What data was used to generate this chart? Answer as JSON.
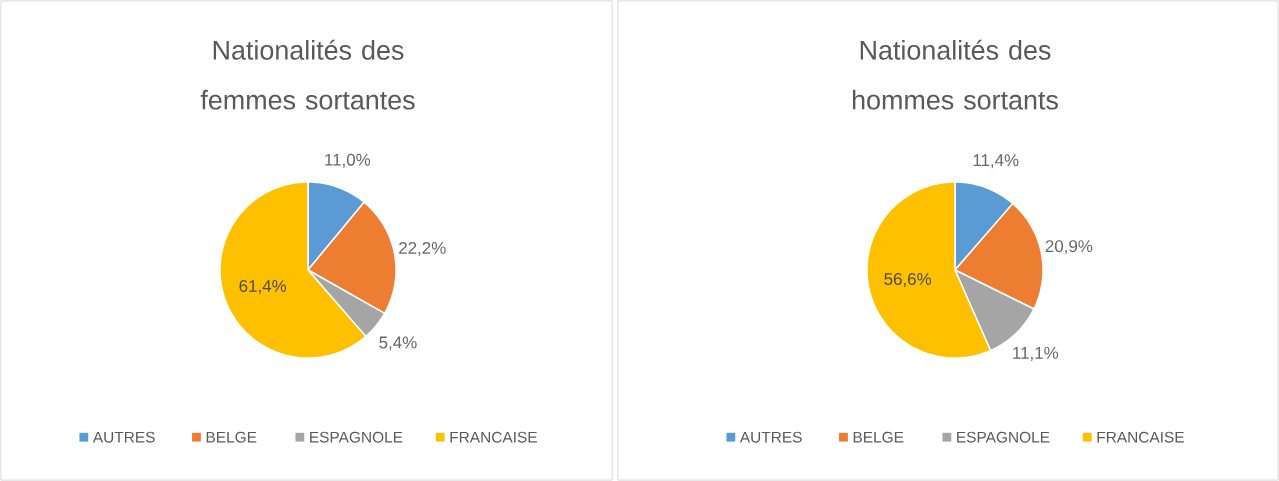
{
  "chart_data": [
    {
      "type": "pie",
      "title": "Nationalités des femmes sortantes",
      "categories": [
        "AUTRES",
        "BELGE",
        "ESPAGNOLE",
        "FRANCAISE"
      ],
      "values": [
        11.0,
        22.2,
        5.4,
        61.4
      ],
      "value_labels": [
        "11,0%",
        "22,2%",
        "5,4%",
        "61,4%"
      ],
      "colors": [
        "#5b9bd5",
        "#ed7d31",
        "#a5a5a5",
        "#ffc000"
      ],
      "legend": "bottom"
    },
    {
      "type": "pie",
      "title": "Nationalités des hommes sortants",
      "categories": [
        "AUTRES",
        "BELGE",
        "ESPAGNOLE",
        "FRANCAISE"
      ],
      "values": [
        11.4,
        20.9,
        11.1,
        56.6
      ],
      "value_labels": [
        "11,4%",
        "20,9%",
        "11,1%",
        "56,6%"
      ],
      "colors": [
        "#5b9bd5",
        "#ed7d31",
        "#a5a5a5",
        "#ffc000"
      ],
      "legend": "bottom"
    }
  ]
}
